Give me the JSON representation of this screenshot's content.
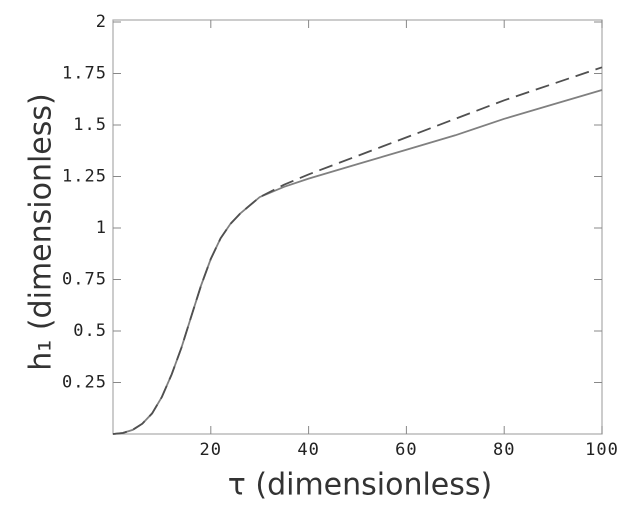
{
  "chart_data": {
    "type": "line",
    "x_label": "τ (dimensionless)",
    "y_label": "h₁ (dimensionless)",
    "x": [
      0,
      2,
      4,
      6,
      8,
      10,
      12,
      14,
      16,
      18,
      20,
      22,
      24,
      26,
      28,
      30,
      35,
      40,
      50,
      60,
      70,
      80,
      90,
      100
    ],
    "series": [
      {
        "color": "#808080",
        "style": "solid",
        "values": [
          0,
          0.005,
          0.02,
          0.05,
          0.1,
          0.18,
          0.29,
          0.42,
          0.57,
          0.72,
          0.85,
          0.95,
          1.02,
          1.07,
          1.11,
          1.15,
          1.2,
          1.24,
          1.31,
          1.38,
          1.45,
          1.53,
          1.6,
          1.67
        ]
      },
      {
        "color": "#505050",
        "style": "dashed",
        "values": [
          0,
          0.005,
          0.02,
          0.05,
          0.1,
          0.18,
          0.29,
          0.42,
          0.57,
          0.72,
          0.85,
          0.95,
          1.02,
          1.07,
          1.11,
          1.15,
          1.21,
          1.26,
          1.35,
          1.44,
          1.53,
          1.62,
          1.7,
          1.78
        ]
      }
    ],
    "xlim": [
      0,
      100
    ],
    "xticks": [
      20,
      40,
      60,
      80,
      100
    ],
    "ylim": [
      0,
      2
    ],
    "yticks": [
      0.25,
      0.5,
      0.75,
      1,
      1.25,
      1.5,
      1.75,
      2
    ]
  }
}
